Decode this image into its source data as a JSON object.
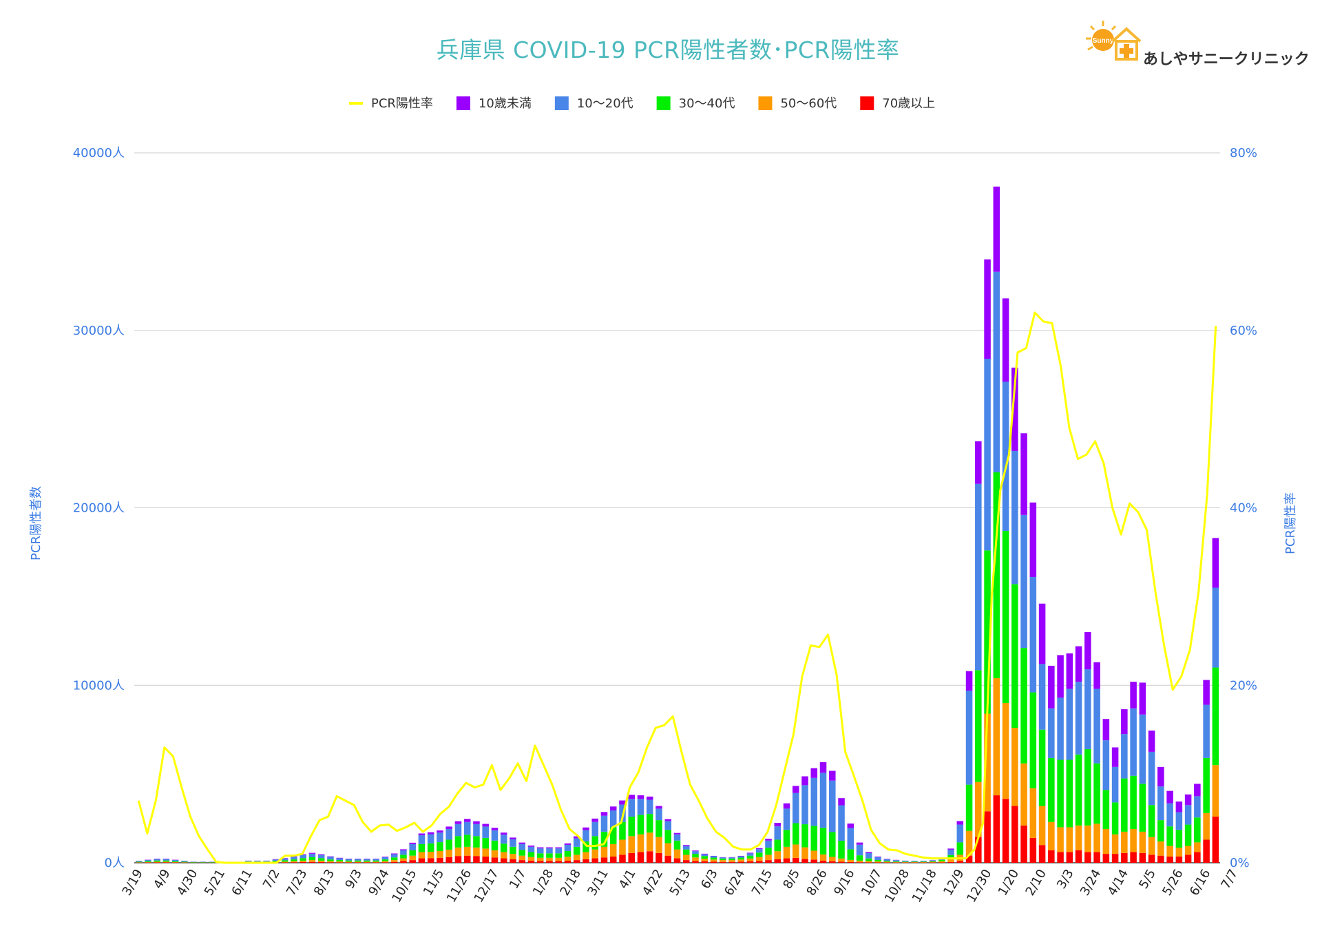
{
  "chart_data": {
    "type": "bar",
    "title": "兵庫県  COVID-19 PCR陽性者数･PCR陽性率",
    "ylabel_left": "PCR陽性者数",
    "ylabel_right": "PCR陽性率",
    "ylim_left": [
      0,
      40000
    ],
    "ylim_right": [
      0,
      80
    ],
    "y_ticks_left": [
      "0人",
      "10000人",
      "20000人",
      "30000人",
      "40000人"
    ],
    "y_ticks_right": [
      "0%",
      "20%",
      "40%",
      "60%",
      "80%"
    ],
    "grid": true,
    "legend_position": "top",
    "stacked": true,
    "x_tick_labels": [
      "3/19",
      "4/9",
      "4/30",
      "5/21",
      "6/11",
      "7/2",
      "7/23",
      "8/13",
      "9/3",
      "9/24",
      "10/15",
      "11/5",
      "11/26",
      "12/17",
      "1/7",
      "1/28",
      "2/18",
      "3/11",
      "4/1",
      "4/22",
      "5/13",
      "6/3",
      "6/24",
      "7/15",
      "8/5",
      "8/26",
      "9/16",
      "10/7",
      "10/28",
      "11/18",
      "12/9",
      "12/30",
      "1/20",
      "2/10",
      "3/3",
      "3/24",
      "4/14",
      "5/5",
      "5/26",
      "6/16",
      "7/7"
    ],
    "series": [
      {
        "name": "70歳以上",
        "color": "#ff0000",
        "values": [
          10,
          15,
          20,
          20,
          15,
          10,
          5,
          5,
          5,
          5,
          5,
          5,
          10,
          10,
          10,
          15,
          20,
          30,
          40,
          50,
          40,
          30,
          25,
          20,
          20,
          20,
          20,
          30,
          50,
          100,
          150,
          250,
          260,
          280,
          320,
          380,
          400,
          380,
          350,
          300,
          250,
          200,
          150,
          120,
          100,
          100,
          100,
          120,
          150,
          200,
          250,
          300,
          350,
          450,
          550,
          600,
          650,
          550,
          400,
          250,
          150,
          100,
          80,
          60,
          50,
          50,
          60,
          80,
          100,
          150,
          200,
          250,
          280,
          220,
          180,
          120,
          80,
          60,
          40,
          30,
          25,
          20,
          15,
          12,
          10,
          10,
          10,
          15,
          20,
          40,
          100,
          400,
          1450,
          2900,
          3800,
          3600,
          3200,
          2100,
          1400,
          1000,
          700,
          600,
          600,
          700,
          600,
          600,
          500,
          500,
          550,
          600,
          550,
          450,
          400,
          350,
          350,
          450,
          600,
          1300,
          2600
        ]
      },
      {
        "name": "50〜60代",
        "color": "#ff9900",
        "values": [
          20,
          30,
          40,
          40,
          30,
          20,
          10,
          10,
          10,
          10,
          10,
          10,
          20,
          20,
          20,
          30,
          40,
          60,
          80,
          100,
          80,
          60,
          50,
          40,
          40,
          40,
          40,
          60,
          100,
          150,
          250,
          350,
          360,
          380,
          420,
          480,
          500,
          480,
          450,
          400,
          350,
          300,
          250,
          200,
          180,
          180,
          180,
          220,
          300,
          400,
          500,
          600,
          700,
          850,
          950,
          1000,
          1050,
          900,
          700,
          500,
          300,
          200,
          150,
          120,
          100,
          100,
          120,
          160,
          220,
          300,
          450,
          650,
          750,
          650,
          500,
          350,
          250,
          180,
          120,
          90,
          70,
          55,
          45,
          35,
          30,
          30,
          30,
          40,
          60,
          150,
          350,
          1400,
          3100,
          5500,
          6600,
          5400,
          4400,
          3500,
          2800,
          2200,
          1600,
          1400,
          1400,
          1400,
          1500,
          1600,
          1400,
          1100,
          1200,
          1300,
          1200,
          1000,
          800,
          600,
          500,
          500,
          550,
          1500,
          2900,
          5700
        ]
      },
      {
        "name": "30〜40代",
        "color": "#00ee00",
        "values": [
          30,
          50,
          70,
          70,
          50,
          30,
          20,
          20,
          20,
          20,
          20,
          20,
          40,
          40,
          40,
          60,
          80,
          100,
          140,
          160,
          140,
          100,
          80,
          70,
          70,
          70,
          70,
          100,
          150,
          200,
          300,
          450,
          470,
          500,
          560,
          640,
          680,
          640,
          600,
          550,
          480,
          400,
          320,
          280,
          250,
          250,
          250,
          320,
          450,
          600,
          750,
          850,
          950,
          1000,
          1100,
          1100,
          1050,
          950,
          750,
          500,
          300,
          200,
          150,
          110,
          90,
          90,
          110,
          160,
          250,
          400,
          650,
          950,
          1200,
          1300,
          1400,
          1500,
          1400,
          1000,
          600,
          300,
          150,
          80,
          50,
          40,
          30,
          30,
          30,
          40,
          80,
          250,
          700,
          2600,
          6300,
          9200,
          11600,
          9700,
          8100,
          6500,
          5400,
          4300,
          3600,
          3800,
          3800,
          4000,
          4300,
          3400,
          2200,
          1800,
          3000,
          3000,
          2700,
          1800,
          1200,
          1100,
          1000,
          1200,
          1400,
          3100,
          5500,
          10200
        ]
      },
      {
        "name": "10〜20代",
        "color": "#4a86e8",
        "values": [
          40,
          60,
          80,
          80,
          60,
          40,
          20,
          20,
          20,
          20,
          20,
          20,
          40,
          40,
          40,
          80,
          100,
          140,
          180,
          200,
          180,
          140,
          100,
          80,
          80,
          80,
          80,
          120,
          180,
          250,
          350,
          500,
          520,
          540,
          600,
          680,
          720,
          680,
          640,
          580,
          500,
          420,
          340,
          300,
          280,
          280,
          280,
          350,
          480,
          640,
          800,
          900,
          950,
          980,
          1000,
          900,
          800,
          650,
          500,
          350,
          200,
          150,
          100,
          80,
          60,
          60,
          80,
          130,
          200,
          400,
          750,
          1200,
          1700,
          2200,
          2700,
          3100,
          2900,
          2000,
          1200,
          600,
          300,
          160,
          90,
          60,
          40,
          30,
          30,
          40,
          80,
          300,
          1000,
          5300,
          10500,
          10800,
          11300,
          8400,
          7500,
          7500,
          6500,
          3700,
          2800,
          3500,
          4000,
          4100,
          4500,
          4200,
          2800,
          2000,
          2500,
          3800,
          3900,
          3000,
          1900,
          1300,
          1000,
          1100,
          1200,
          3000,
          4500,
          6500
        ]
      },
      {
        "name": "10歳未満",
        "color": "#9900ff",
        "values": [
          10,
          15,
          20,
          20,
          15,
          10,
          5,
          5,
          5,
          5,
          5,
          5,
          10,
          10,
          10,
          20,
          25,
          30,
          40,
          50,
          40,
          30,
          25,
          20,
          20,
          20,
          20,
          30,
          45,
          60,
          80,
          100,
          110,
          120,
          140,
          160,
          170,
          160,
          150,
          140,
          120,
          100,
          80,
          70,
          60,
          60,
          60,
          80,
          110,
          150,
          190,
          210,
          220,
          230,
          230,
          200,
          180,
          150,
          110,
          80,
          50,
          40,
          30,
          20,
          15,
          15,
          20,
          35,
          55,
          100,
          200,
          300,
          400,
          500,
          550,
          600,
          550,
          400,
          250,
          120,
          60,
          35,
          20,
          15,
          10,
          10,
          10,
          10,
          20,
          60,
          200,
          1100,
          2400,
          5600,
          4800,
          4700,
          4700,
          4600,
          4200,
          3400,
          2400,
          2400,
          2000,
          2000,
          2100,
          1500,
          1200,
          1100,
          1400,
          1500,
          1800,
          1200,
          1100,
          700,
          600,
          600,
          700,
          1400,
          2800,
          3400
        ]
      }
    ],
    "pcr_rate_line": {
      "name": "PCR陽性率",
      "color": "#ffff00",
      "values": [
        7,
        3.3,
        7,
        13,
        12,
        8.5,
        5.2,
        3.0,
        1.5,
        0.1,
        0,
        0,
        0,
        0,
        0,
        0,
        0,
        0.8,
        0.8,
        1,
        3,
        4.8,
        5.2,
        7.5,
        7,
        6.5,
        4.6,
        3.5,
        4.2,
        4.3,
        3.6,
        4,
        4.5,
        3.5,
        4.2,
        5.5,
        6.3,
        7.8,
        9,
        8.5,
        8.8,
        11,
        8.2,
        9.5,
        11.2,
        9.2,
        13.2,
        11,
        8.8,
        6,
        3.8,
        3,
        1.9,
        1.9,
        2.1,
        4,
        4.5,
        8.5,
        10.2,
        13,
        15.2,
        15.5,
        16.5,
        12.5,
        8.8,
        7,
        5,
        3.5,
        2.8,
        1.8,
        1.5,
        1.5,
        2,
        3.5,
        6.5,
        10.5,
        14.5,
        21,
        24.5,
        24.3,
        25.7,
        21.2,
        12.5,
        9.8,
        7,
        3.7,
        2.2,
        1.5,
        1.4,
        1,
        0.8,
        0.6,
        0.5,
        0.5,
        0.5,
        0.5,
        0.5,
        1.5,
        4.5,
        30,
        42,
        46,
        57.5,
        58,
        62,
        61,
        60.8,
        56,
        49,
        45.5,
        46,
        47.5,
        45,
        40,
        37,
        40.5,
        39.5,
        37.5,
        30.5,
        24.5,
        19.5,
        21,
        24,
        30.5,
        41.5,
        60.5
      ]
    }
  },
  "logo": {
    "text": "あしやサニークリニック",
    "badge": "Sunny"
  }
}
